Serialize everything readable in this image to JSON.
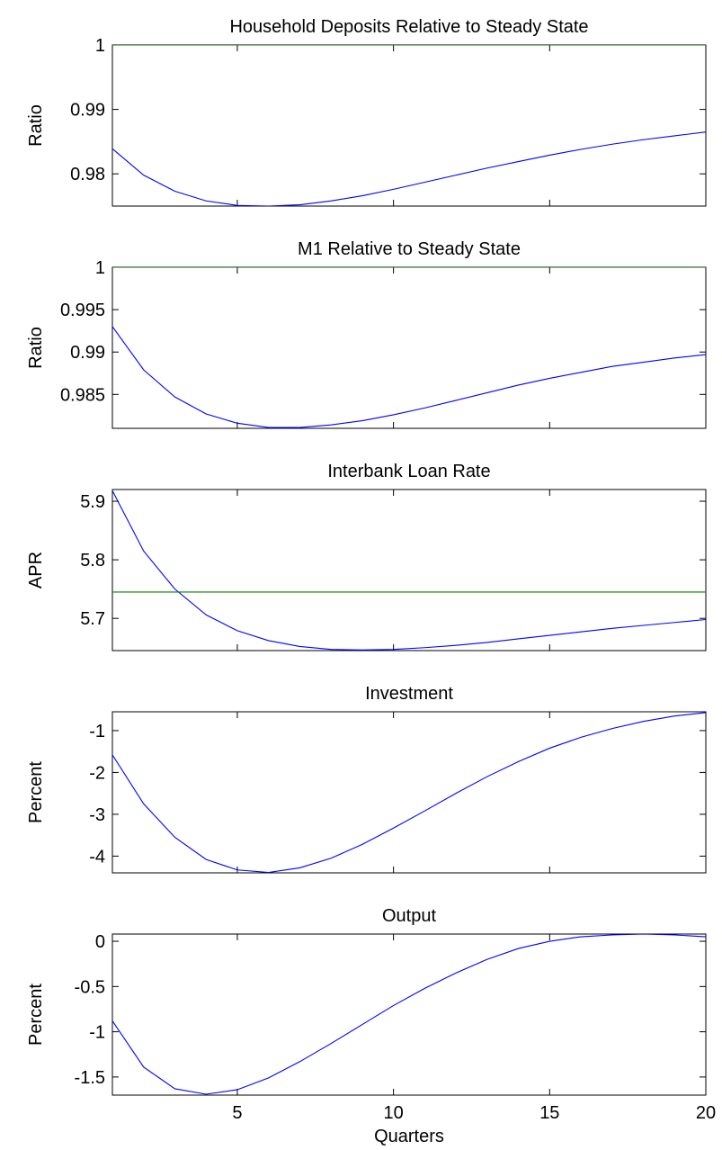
{
  "chart_data": [
    {
      "type": "line",
      "title": "Household Deposits Relative to Steady State",
      "ylabel": "Ratio",
      "xlabel": "",
      "xlim": [
        1,
        20
      ],
      "ylim": [
        0.975,
        1.0
      ],
      "yticks": [
        0.98,
        0.99,
        1
      ],
      "ytick_labels": [
        "0.98",
        "0.99",
        "1"
      ],
      "xticks": [
        5,
        10,
        15,
        20
      ],
      "xtick_labels": [],
      "series": [
        {
          "color": "#0000ff",
          "x": [
            1,
            2,
            3,
            4,
            5,
            6,
            7,
            8,
            9,
            10,
            11,
            12,
            13,
            14,
            15,
            16,
            17,
            18,
            19,
            20
          ],
          "values": [
            0.9839,
            0.9798,
            0.9773,
            0.9758,
            0.9751,
            0.975,
            0.9752,
            0.9758,
            0.9766,
            0.9776,
            0.9787,
            0.9798,
            0.9809,
            0.9819,
            0.9829,
            0.9838,
            0.9846,
            0.9853,
            0.9859,
            0.9865
          ]
        },
        {
          "color": "#008000",
          "x": [
            1,
            20
          ],
          "values": [
            1.0,
            1.0
          ]
        }
      ]
    },
    {
      "type": "line",
      "title": "M1 Relative to Steady State",
      "ylabel": "Ratio",
      "xlabel": "",
      "xlim": [
        1,
        20
      ],
      "ylim": [
        0.981,
        1.0
      ],
      "yticks": [
        0.985,
        0.99,
        0.995,
        1
      ],
      "ytick_labels": [
        "0.985",
        "0.99",
        "0.995",
        "1"
      ],
      "xticks": [
        5,
        10,
        15,
        20
      ],
      "xtick_labels": [],
      "series": [
        {
          "color": "#0000ff",
          "x": [
            1,
            2,
            3,
            4,
            5,
            6,
            7,
            8,
            9,
            10,
            11,
            12,
            13,
            14,
            15,
            16,
            17,
            18,
            19,
            20
          ],
          "values": [
            0.993,
            0.9879,
            0.9847,
            0.9827,
            0.9816,
            0.9811,
            0.9811,
            0.9814,
            0.9819,
            0.9826,
            0.9834,
            0.9843,
            0.9852,
            0.9861,
            0.9869,
            0.9876,
            0.9883,
            0.9888,
            0.9893,
            0.9897
          ]
        },
        {
          "color": "#008000",
          "x": [
            1,
            20
          ],
          "values": [
            1.0,
            1.0
          ]
        }
      ]
    },
    {
      "type": "line",
      "title": "Interbank Loan Rate",
      "ylabel": "APR",
      "xlabel": "",
      "xlim": [
        1,
        20
      ],
      "ylim": [
        5.645,
        5.92
      ],
      "yticks": [
        5.7,
        5.8,
        5.9
      ],
      "ytick_labels": [
        "5.7",
        "5.8",
        "5.9"
      ],
      "xticks": [
        5,
        10,
        15,
        20
      ],
      "xtick_labels": [],
      "series": [
        {
          "color": "#0000ff",
          "x": [
            1,
            2,
            3,
            4,
            5,
            6,
            7,
            8,
            9,
            10,
            11,
            12,
            13,
            14,
            15,
            16,
            17,
            18,
            19,
            20
          ],
          "values": [
            5.918,
            5.815,
            5.75,
            5.706,
            5.679,
            5.662,
            5.652,
            5.647,
            5.646,
            5.647,
            5.65,
            5.654,
            5.659,
            5.665,
            5.671,
            5.677,
            5.683,
            5.688,
            5.693,
            5.698
          ]
        },
        {
          "color": "#008000",
          "x": [
            1,
            20
          ],
          "values": [
            5.745,
            5.745
          ]
        }
      ]
    },
    {
      "type": "line",
      "title": "Investment",
      "ylabel": "Percent",
      "xlabel": "",
      "xlim": [
        1,
        20
      ],
      "ylim": [
        -4.4,
        -0.55
      ],
      "yticks": [
        -4,
        -3,
        -2,
        -1
      ],
      "ytick_labels": [
        "-4",
        "-3",
        "-2",
        "-1"
      ],
      "xticks": [
        5,
        10,
        15,
        20
      ],
      "xtick_labels": [],
      "series": [
        {
          "color": "#0000ff",
          "x": [
            1,
            2,
            3,
            4,
            5,
            6,
            7,
            8,
            9,
            10,
            11,
            12,
            13,
            14,
            15,
            16,
            17,
            18,
            19,
            20
          ],
          "values": [
            -1.58,
            -2.75,
            -3.55,
            -4.08,
            -4.33,
            -4.39,
            -4.28,
            -4.05,
            -3.72,
            -3.33,
            -2.92,
            -2.5,
            -2.1,
            -1.74,
            -1.42,
            -1.16,
            -0.95,
            -0.78,
            -0.65,
            -0.57
          ]
        }
      ]
    },
    {
      "type": "line",
      "title": "Output",
      "ylabel": "Percent",
      "xlabel": "Quarters",
      "xlim": [
        1,
        20
      ],
      "ylim": [
        -1.7,
        0.08
      ],
      "yticks": [
        -1.5,
        -1,
        -0.5,
        0
      ],
      "ytick_labels": [
        "-1.5",
        "-1",
        "-0.5",
        "0"
      ],
      "xticks": [
        5,
        10,
        15,
        20
      ],
      "xtick_labels": [
        "5",
        "10",
        "15",
        "20"
      ],
      "series": [
        {
          "color": "#0000ff",
          "x": [
            1,
            2,
            3,
            4,
            5,
            6,
            7,
            8,
            9,
            10,
            11,
            12,
            13,
            14,
            15,
            16,
            17,
            18,
            19,
            20
          ],
          "values": [
            -0.88,
            -1.39,
            -1.63,
            -1.69,
            -1.64,
            -1.51,
            -1.33,
            -1.13,
            -0.92,
            -0.71,
            -0.52,
            -0.35,
            -0.2,
            -0.08,
            0.0,
            0.05,
            0.07,
            0.08,
            0.07,
            0.05
          ]
        }
      ]
    }
  ]
}
